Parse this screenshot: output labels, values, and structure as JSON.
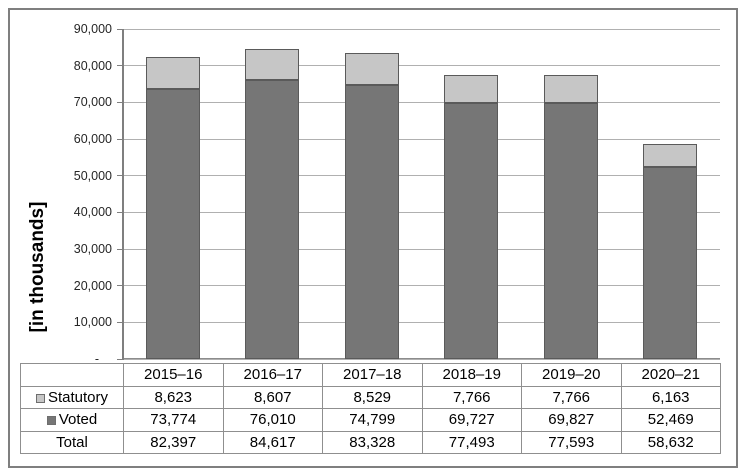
{
  "chart_data": {
    "type": "bar",
    "stacked": true,
    "title": "",
    "categories": [
      "2015–16",
      "2016–17",
      "2017–18",
      "2018–19",
      "2019–20",
      "2020–21"
    ],
    "series": [
      {
        "name": "Statutory",
        "color": "#c6c6c6",
        "values": [
          8623,
          8607,
          8529,
          7766,
          7766,
          6163
        ]
      },
      {
        "name": "Voted",
        "color": "#767676",
        "values": [
          73774,
          76010,
          74799,
          69727,
          69827,
          52469
        ]
      }
    ],
    "totals": [
      82397,
      84617,
      83328,
      77493,
      77593,
      58632
    ],
    "xlabel": "",
    "ylabel": "[in thousands]",
    "ylim": [
      0,
      90000
    ],
    "ytick_step": 10000,
    "ytick_labels": [
      "90,000",
      "80,000",
      "70,000",
      "60,000",
      "50,000",
      "40,000",
      "30,000",
      "20,000",
      "10,000",
      "-"
    ],
    "grid": true,
    "legend_position": "table-row-labels"
  },
  "table": {
    "rows": [
      {
        "label": "Statutory",
        "swatch_color": "#c6c6c6",
        "values": [
          "8,623",
          "8,607",
          "8,529",
          "7,766",
          "7,766",
          "6,163"
        ]
      },
      {
        "label": "Voted",
        "swatch_color": "#767676",
        "values": [
          "73,774",
          "76,010",
          "74,799",
          "69,727",
          "69,827",
          "52,469"
        ]
      },
      {
        "label": "Total",
        "swatch_color": null,
        "values": [
          "82,397",
          "84,617",
          "83,328",
          "77,493",
          "77,593",
          "58,632"
        ]
      }
    ]
  },
  "colors": {
    "statutory_fill": "#c6c6c6",
    "voted_fill": "#767676",
    "bar_border": "#5a5a5a",
    "gridline": "#b0b0b0",
    "axis": "#7f7f7f",
    "figure_border": "#7f7f7f",
    "table_border": "#8f8f8f"
  }
}
